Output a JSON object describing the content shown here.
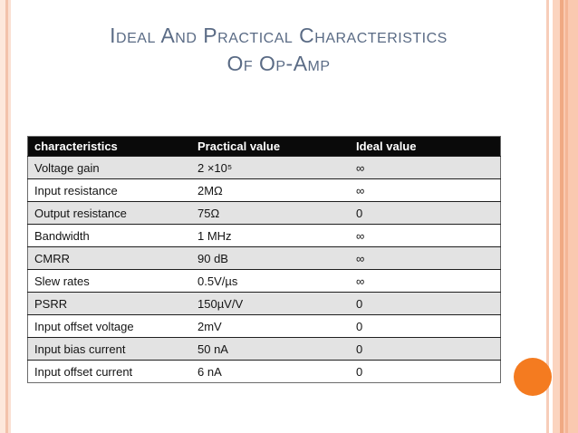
{
  "slide": {
    "title_line1": "Ideal And Practical Characteristics",
    "title_line2": "Of Op-Amp"
  },
  "table": {
    "headers": [
      "characteristics",
      "Practical value",
      "Ideal value"
    ],
    "rows": [
      {
        "characteristic": "Voltage gain",
        "practical": "2 ×10⁵",
        "ideal": "∞"
      },
      {
        "characteristic": "Input resistance",
        "practical": "2MΩ",
        "ideal": "∞"
      },
      {
        "characteristic": "Output resistance",
        "practical": "75Ω",
        "ideal": "0"
      },
      {
        "characteristic": "Bandwidth",
        "practical": "1 MHz",
        "ideal": "∞"
      },
      {
        "characteristic": "CMRR",
        "practical": "90 dB",
        "ideal": "∞"
      },
      {
        "characteristic": "Slew rates",
        "practical": "0.5V/µs",
        "ideal": "∞"
      },
      {
        "characteristic": "PSRR",
        "practical": "150µV/V",
        "ideal": "0"
      },
      {
        "characteristic": "Input offset voltage",
        "practical": "2mV",
        "ideal": "0"
      },
      {
        "characteristic": "Input bias current",
        "practical": "50 nA",
        "ideal": "0"
      },
      {
        "characteristic": "Input offset current",
        "practical": "6 nA",
        "ideal": "0"
      }
    ]
  },
  "colors": {
    "title_text": "#5A6B85",
    "header_bg": "#0A0A0A",
    "header_text": "#FFFFFF",
    "row_alt_bg": "#E3E3E3",
    "row_border": "#1F1F1F",
    "accent_orange": "#F47B20",
    "edge_stripe_light": "#FBD4BF",
    "edge_stripe_dark": "#F0A983"
  }
}
